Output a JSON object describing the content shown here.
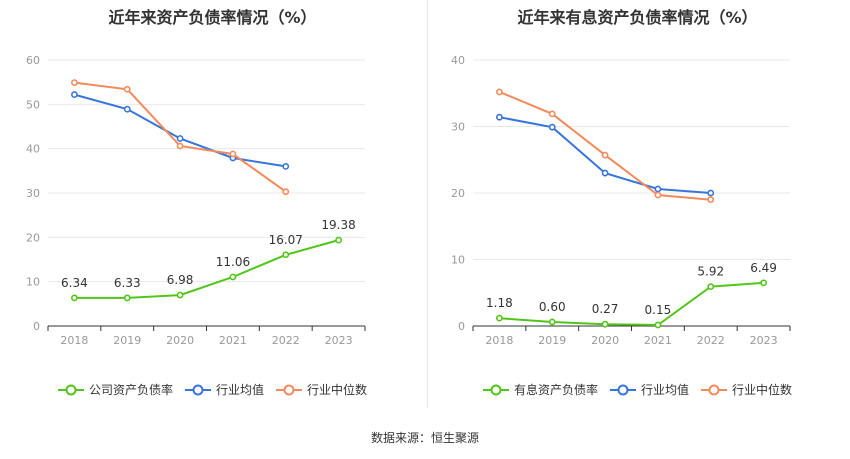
{
  "colors": {
    "company": "#52c41a",
    "industry_avg": "#3875db",
    "industry_median": "#f28a5c",
    "grid": "#e8e8e8",
    "axis": "#333333",
    "tick_label": "#999999"
  },
  "source": "数据来源：恒生聚源",
  "chart_data": [
    {
      "type": "line",
      "title": "近年来资产负债率情况（%）",
      "categories": [
        "2018",
        "2019",
        "2020",
        "2021",
        "2022",
        "2023"
      ],
      "ylim": [
        0,
        60
      ],
      "yticks": [
        0,
        10,
        20,
        30,
        40,
        50,
        60
      ],
      "grid": true,
      "legend_position": "bottom",
      "series": [
        {
          "name": "公司资产负债率",
          "values": [
            6.34,
            6.33,
            6.98,
            11.06,
            16.07,
            19.38
          ],
          "labels": [
            "6.34",
            "6.33",
            "6.98",
            "11.06",
            "16.07",
            "19.38"
          ],
          "color": "#52c41a"
        },
        {
          "name": "行业均值",
          "values": [
            52.2,
            48.9,
            42.3,
            37.9,
            36.0,
            null
          ],
          "color": "#3875db"
        },
        {
          "name": "行业中位数",
          "values": [
            54.9,
            53.4,
            40.6,
            38.8,
            30.3,
            null
          ],
          "color": "#f28a5c"
        }
      ]
    },
    {
      "type": "line",
      "title": "近年来有息资产负债率情况（%）",
      "categories": [
        "2018",
        "2019",
        "2020",
        "2021",
        "2022",
        "2023"
      ],
      "ylim": [
        0,
        40
      ],
      "yticks": [
        0,
        10,
        20,
        30,
        40
      ],
      "grid": true,
      "legend_position": "bottom",
      "series": [
        {
          "name": "有息资产负债率",
          "values": [
            1.18,
            0.6,
            0.27,
            0.15,
            5.92,
            6.49
          ],
          "labels": [
            "1.18",
            "0.60",
            "0.27",
            "0.15",
            "5.92",
            "6.49"
          ],
          "color": "#52c41a"
        },
        {
          "name": "行业均值",
          "values": [
            31.4,
            29.9,
            23.0,
            20.6,
            20.0,
            null
          ],
          "color": "#3875db"
        },
        {
          "name": "行业中位数",
          "values": [
            35.2,
            31.9,
            25.7,
            19.7,
            19.0,
            null
          ],
          "color": "#f28a5c"
        }
      ]
    }
  ]
}
